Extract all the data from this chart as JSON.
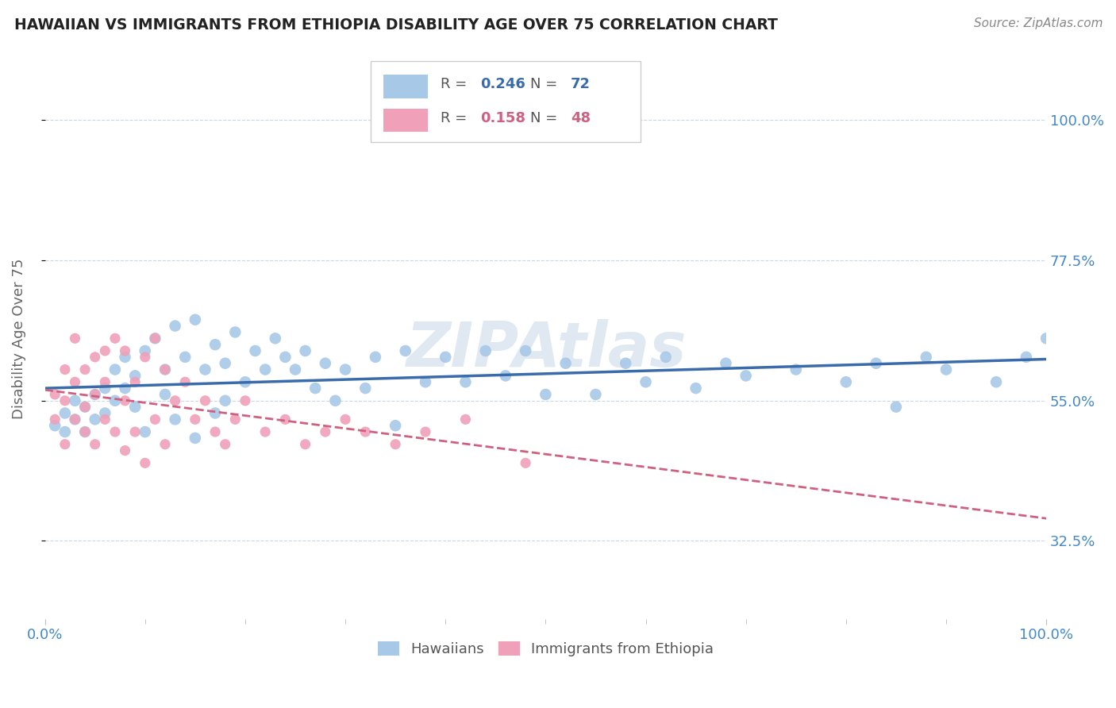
{
  "title": "HAWAIIAN VS IMMIGRANTS FROM ETHIOPIA DISABILITY AGE OVER 75 CORRELATION CHART",
  "source": "Source: ZipAtlas.com",
  "ylabel": "Disability Age Over 75",
  "watermark": "ZIPAtlas",
  "xlim": [
    0,
    100
  ],
  "ylim": [
    20,
    110
  ],
  "ytick_values": [
    32.5,
    55.0,
    77.5,
    100.0
  ],
  "r_hawaiian": 0.246,
  "n_hawaiian": 72,
  "r_ethiopia": 0.158,
  "n_ethiopia": 48,
  "blue_color": "#A8C8E8",
  "pink_color": "#F0A0B8",
  "blue_line_color": "#3A6BAA",
  "pink_line_color": "#D06080",
  "background_color": "#FFFFFF",
  "grid_color": "#C8D8E8",
  "axis_label_color": "#4488CC",
  "title_color": "#222222",
  "hawaiians_x": [
    1,
    2,
    2,
    3,
    3,
    4,
    4,
    5,
    5,
    6,
    6,
    7,
    7,
    8,
    8,
    9,
    9,
    10,
    10,
    11,
    12,
    12,
    13,
    13,
    14,
    15,
    15,
    16,
    17,
    17,
    18,
    18,
    19,
    20,
    21,
    22,
    23,
    24,
    25,
    26,
    27,
    28,
    29,
    30,
    32,
    33,
    35,
    36,
    38,
    40,
    42,
    44,
    46,
    48,
    50,
    52,
    55,
    58,
    60,
    62,
    65,
    68,
    70,
    75,
    80,
    83,
    85,
    88,
    90,
    95,
    98,
    100
  ],
  "hawaiians_y": [
    51,
    50,
    53,
    52,
    55,
    54,
    50,
    56,
    52,
    57,
    53,
    60,
    55,
    62,
    57,
    59,
    54,
    63,
    50,
    65,
    60,
    56,
    67,
    52,
    62,
    68,
    49,
    60,
    64,
    53,
    61,
    55,
    66,
    58,
    63,
    60,
    65,
    62,
    60,
    63,
    57,
    61,
    55,
    60,
    57,
    62,
    51,
    63,
    58,
    62,
    58,
    63,
    59,
    63,
    56,
    61,
    56,
    61,
    58,
    62,
    57,
    61,
    59,
    60,
    58,
    61,
    54,
    62,
    60,
    58,
    62,
    65
  ],
  "ethiopia_x": [
    1,
    1,
    2,
    2,
    2,
    3,
    3,
    3,
    4,
    4,
    4,
    5,
    5,
    5,
    6,
    6,
    6,
    7,
    7,
    8,
    8,
    8,
    9,
    9,
    10,
    10,
    11,
    11,
    12,
    12,
    13,
    14,
    15,
    16,
    17,
    18,
    19,
    20,
    22,
    24,
    26,
    28,
    30,
    32,
    35,
    38,
    42,
    48
  ],
  "ethiopia_y": [
    52,
    56,
    55,
    48,
    60,
    58,
    52,
    65,
    60,
    54,
    50,
    62,
    56,
    48,
    63,
    52,
    58,
    65,
    50,
    63,
    47,
    55,
    58,
    50,
    62,
    45,
    65,
    52,
    60,
    48,
    55,
    58,
    52,
    55,
    50,
    48,
    52,
    55,
    50,
    52,
    48,
    50,
    52,
    50,
    48,
    50,
    52,
    45
  ]
}
